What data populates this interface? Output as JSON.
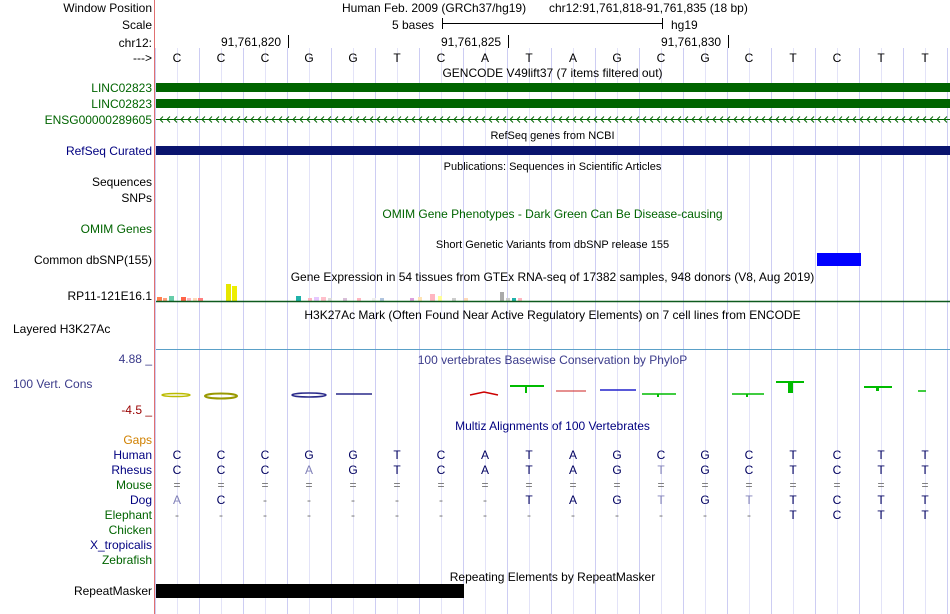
{
  "header": {
    "window_position_label": "Window Position",
    "assembly": "Human Feb. 2009 (GRCh37/hg19)",
    "position": "chr12:91,761,818-91,761,835 (18 bp)",
    "scale_label": "Scale",
    "scale_text": "5 bases",
    "scale_db": "hg19",
    "chrom_label": "chr12:",
    "ticks": [
      "91,761,820",
      "91,761,825",
      "91,761,830"
    ],
    "strand_label": "--->"
  },
  "sequence": [
    "C",
    "C",
    "C",
    "G",
    "G",
    "T",
    "C",
    "A",
    "T",
    "A",
    "G",
    "C",
    "G",
    "C",
    "T",
    "C",
    "T",
    "T"
  ],
  "gencode": {
    "title": "GENCODE V49lift37 (7 items filtered out)",
    "items": [
      "LINC02823",
      "LINC02823",
      "ENSG00000289605"
    ],
    "color": "#006400"
  },
  "refseq": {
    "title": "RefSeq genes from NCBI",
    "label": "RefSeq Curated",
    "color": "#0a146e"
  },
  "publications": {
    "title": "Publications: Sequences in Scientific Articles",
    "labels": [
      "Sequences",
      "SNPs"
    ]
  },
  "omim": {
    "title": "OMIM Gene Phenotypes - Dark Green Can Be Disease-causing",
    "label": "OMIM Genes"
  },
  "dbsnp": {
    "title": "Short Genetic Variants from dbSNP release 155",
    "label": "Common dbSNP(155)",
    "color": "#0000ff"
  },
  "gtex": {
    "title": "Gene Expression in 54 tissues from GTEx RNA-seq of 17382 samples, 948 donors (V8, Aug 2019)",
    "label": "RP11-121E16.1",
    "line_color": "#0e5a1e"
  },
  "h3k27ac": {
    "title": "H3K27Ac Mark (Often Found Near Active Regulatory Elements) on 7 cell lines from ENCODE",
    "label": "Layered H3K27Ac"
  },
  "phylop": {
    "title": "100 vertebrates Basewise Conservation by PhyloP",
    "label": "100 Vert. Cons",
    "max": "4.88 _",
    "min": "-4.5 _"
  },
  "multiz": {
    "title": "Multiz Alignments of 100 Vertebrates",
    "gaps_label": "Gaps",
    "species": [
      {
        "name": "Human",
        "bases": [
          "C",
          "C",
          "C",
          "G",
          "G",
          "T",
          "C",
          "A",
          "T",
          "A",
          "G",
          "C",
          "G",
          "C",
          "T",
          "C",
          "T",
          "T"
        ]
      },
      {
        "name": "Rhesus",
        "bases": [
          "C",
          "C",
          "C",
          "A",
          "G",
          "T",
          "C",
          "A",
          "T",
          "A",
          "G",
          "T",
          "G",
          "C",
          "T",
          "C",
          "T",
          "T"
        ]
      },
      {
        "name": "Mouse",
        "bases": [
          "=",
          "=",
          "=",
          "=",
          "=",
          "=",
          "=",
          "=",
          "=",
          "=",
          "=",
          "=",
          "=",
          "=",
          "=",
          "=",
          "=",
          "="
        ]
      },
      {
        "name": "Dog",
        "bases": [
          "A",
          "C",
          "-",
          "-",
          "-",
          "-",
          "-",
          "-",
          "T",
          "A",
          "G",
          "T",
          "G",
          "T",
          "T",
          "C",
          "T",
          "T"
        ]
      },
      {
        "name": "Elephant",
        "bases": [
          "-",
          "-",
          "-",
          "-",
          "-",
          "-",
          "-",
          "-",
          "-",
          "-",
          "-",
          "-",
          "-",
          "-",
          "T",
          "C",
          "T",
          "T"
        ]
      },
      {
        "name": "Chicken",
        "bases": []
      },
      {
        "name": "X_tropicalis",
        "bases": []
      },
      {
        "name": "Zebrafish",
        "bases": []
      }
    ]
  },
  "repeatmasker": {
    "title": "Repeating Elements by RepeatMasker",
    "label": "RepeatMasker"
  },
  "colors": {
    "gap_label": "#d08000",
    "grid": "#c0c0f0",
    "separator": "#e07070",
    "phylop_pos": "#00cc00",
    "phylop_neg": "#cc0000",
    "phylop_label": "#3a3a8a"
  }
}
